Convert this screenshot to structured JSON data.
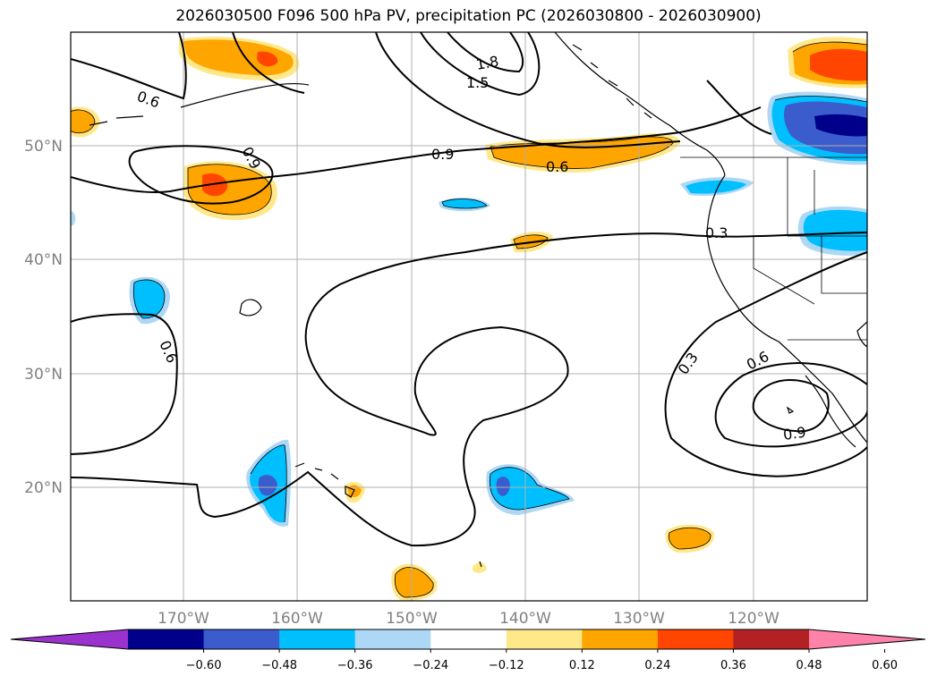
{
  "title": "2026030500 F096 500 hPa PV, precipitation PC (2026030800 - 2026030900)",
  "map": {
    "lat_labels": [
      "50°N",
      "40°N",
      "30°N",
      "20°N"
    ],
    "lon_labels": [
      "170°W",
      "160°W",
      "150°W",
      "140°W",
      "130°W",
      "120°W"
    ],
    "label_color": "#808080",
    "grid_color": "#b0b0b0"
  },
  "contours": {
    "labels": [
      "0.6",
      "0.9",
      "1.8",
      "1.5",
      "0.9",
      "0.6",
      "0.3",
      "0.6",
      "0.3",
      "0.6",
      "0.9"
    ]
  },
  "colorbar": {
    "ticks": [
      "−0.60",
      "−0.48",
      "−0.36",
      "−0.24",
      "−0.12",
      "0.12",
      "0.24",
      "0.36",
      "0.48",
      "0.60"
    ],
    "colors": [
      "#9a32cd",
      "#00008b",
      "#3a5ccc",
      "#00bfff",
      "#add8f5",
      "#ffffff",
      "#ffe88a",
      "#ffa500",
      "#ff4500",
      "#b22222",
      "#ff82ab"
    ]
  }
}
